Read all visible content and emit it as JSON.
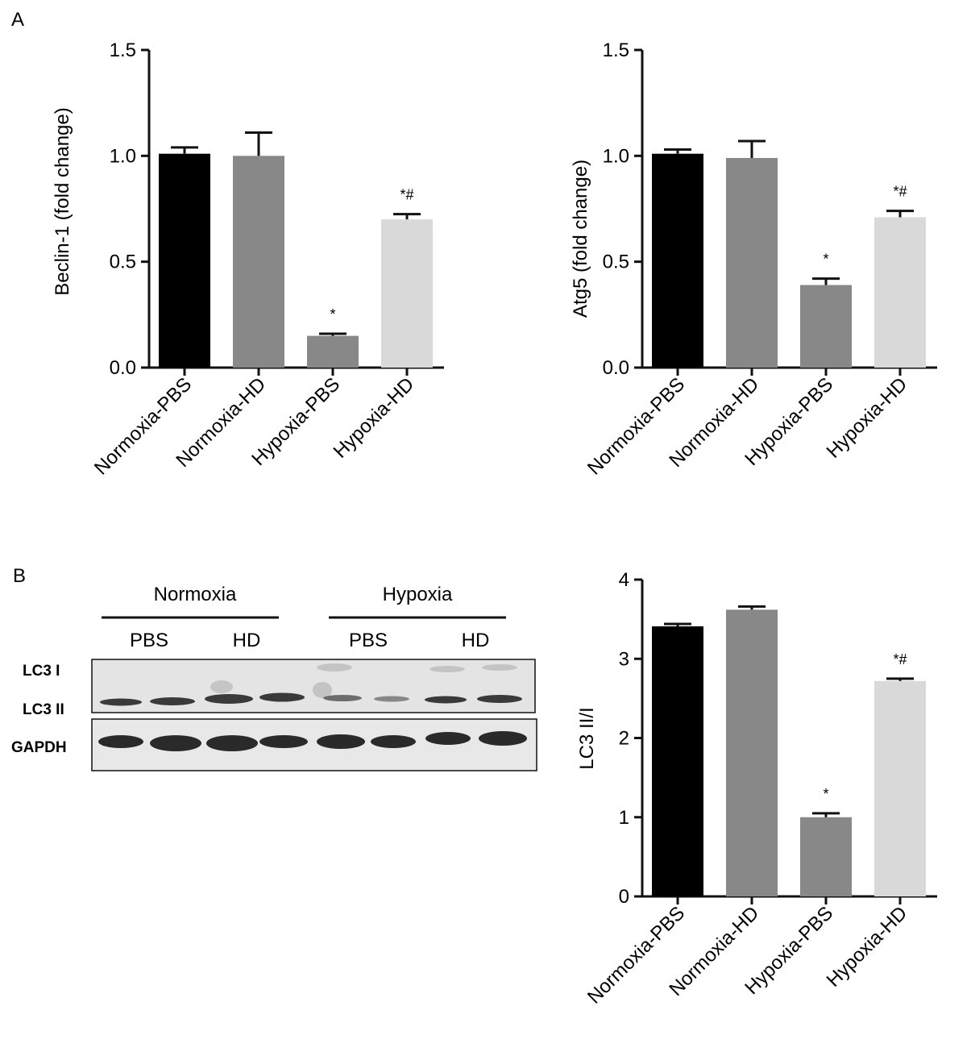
{
  "panel_labels": {
    "a": "A",
    "b": "B"
  },
  "blot": {
    "group_normoxia": "Normoxia",
    "group_hypoxia": "Hypoxia",
    "treatments": [
      "PBS",
      "HD",
      "PBS",
      "HD"
    ],
    "rows": [
      "LC3 I",
      "LC3 II",
      "GAPDH"
    ]
  },
  "chart_data": [
    {
      "id": "beclin",
      "type": "bar",
      "title": "",
      "xlabel": "",
      "ylabel": "Beclin-1 (fold change)",
      "categories": [
        "Normoxia-PBS",
        "Normoxia-HD",
        "Hypoxia-PBS",
        "Hypoxia-HD"
      ],
      "values": [
        1.01,
        1.0,
        0.15,
        0.7
      ],
      "errors": [
        0.03,
        0.11,
        0.01,
        0.025
      ],
      "annotations": [
        "",
        "",
        "*",
        "*#"
      ],
      "colors": [
        "#000000",
        "#888888",
        "#888888",
        "#d9d9d9"
      ],
      "ylim": [
        0,
        1.5
      ],
      "yticks": [
        0,
        0.5,
        1.0,
        1.5
      ],
      "ytick_labels": [
        "0.0",
        "0.5",
        "1.0",
        "1.5"
      ],
      "grid": false
    },
    {
      "id": "atg5",
      "type": "bar",
      "title": "",
      "xlabel": "",
      "ylabel": "Atg5 (fold change)",
      "categories": [
        "Normoxia-PBS",
        "Normoxia-HD",
        "Hypoxia-PBS",
        "Hypoxia-HD"
      ],
      "values": [
        1.01,
        0.99,
        0.39,
        0.71
      ],
      "errors": [
        0.02,
        0.08,
        0.03,
        0.03
      ],
      "annotations": [
        "",
        "",
        "*",
        "*#"
      ],
      "colors": [
        "#000000",
        "#888888",
        "#888888",
        "#d9d9d9"
      ],
      "ylim": [
        0,
        1.5
      ],
      "yticks": [
        0,
        0.5,
        1.0,
        1.5
      ],
      "ytick_labels": [
        "0.0",
        "0.5",
        "1.0",
        "1.5"
      ],
      "grid": false
    },
    {
      "id": "lc3",
      "type": "bar",
      "title": "",
      "xlabel": "",
      "ylabel": "LC3 II/I",
      "categories": [
        "Normoxia-PBS",
        "Normoxia-HD",
        "Hypoxia-PBS",
        "Hypoxia-HD"
      ],
      "values": [
        3.41,
        3.62,
        1.0,
        2.72
      ],
      "errors": [
        0.03,
        0.04,
        0.05,
        0.03
      ],
      "annotations": [
        "",
        "",
        "*",
        "*#"
      ],
      "colors": [
        "#000000",
        "#888888",
        "#888888",
        "#d9d9d9"
      ],
      "ylim": [
        0,
        4
      ],
      "yticks": [
        0,
        1,
        2,
        3,
        4
      ],
      "ytick_labels": [
        "0",
        "1",
        "2",
        "3",
        "4"
      ],
      "grid": false
    }
  ]
}
